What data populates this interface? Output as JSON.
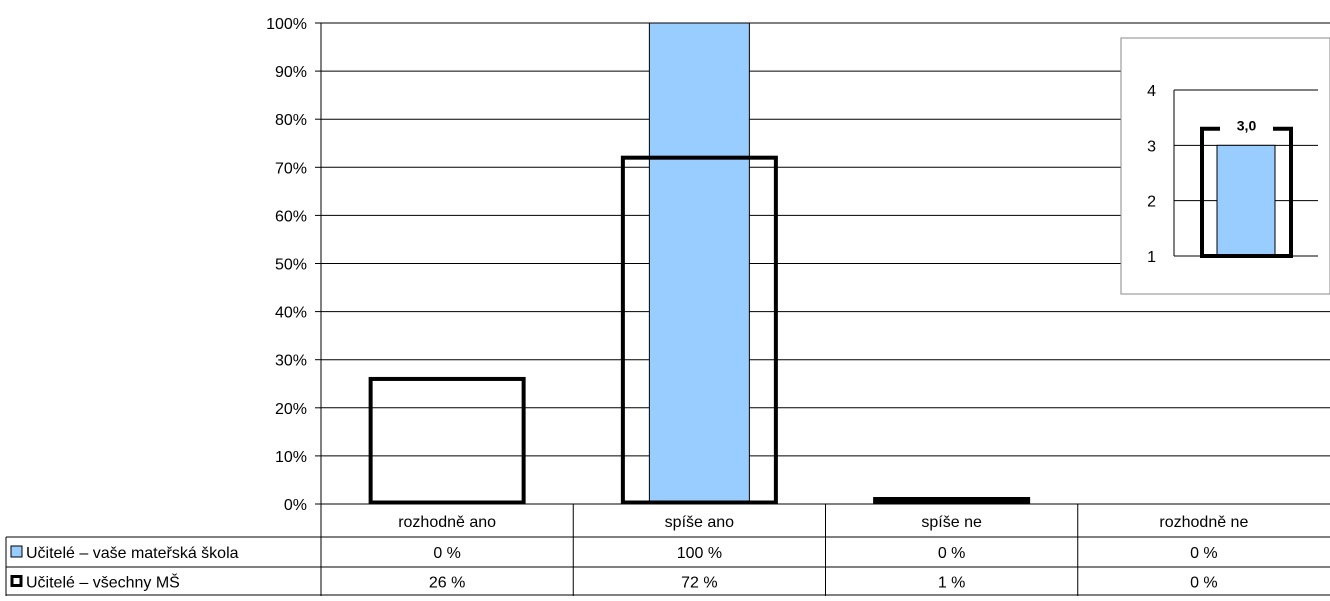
{
  "chart_data": {
    "type": "bar",
    "categories": [
      "rozhodně ano",
      "spíše ano",
      "spíše ne",
      "rozhodně ne"
    ],
    "ylim": [
      0,
      100
    ],
    "y_ticks": [
      "0%",
      "10%",
      "20%",
      "30%",
      "40%",
      "50%",
      "60%",
      "70%",
      "80%",
      "90%",
      "100%"
    ],
    "grid": true,
    "series": [
      {
        "name": "Učitelé – vaše mateřská škola",
        "values": [
          0,
          100,
          0,
          0
        ],
        "labels": [
          "0 %",
          "100 %",
          "0 %",
          "0 %"
        ],
        "fill": "#99ccff",
        "style": "filled"
      },
      {
        "name": "Učitelé – všechny MŠ",
        "values": [
          26,
          72,
          1,
          0
        ],
        "labels": [
          "26 %",
          "72 %",
          "1 %",
          "0 %"
        ],
        "fill": "#ffffff",
        "style": "outline"
      }
    ],
    "legend": "table-below",
    "inset": {
      "type": "bar",
      "ylim": [
        1,
        4
      ],
      "y_ticks": [
        "1",
        "2",
        "3",
        "4"
      ],
      "value": 3.0,
      "value_label": "3,0",
      "reference_value": 3.3
    }
  }
}
